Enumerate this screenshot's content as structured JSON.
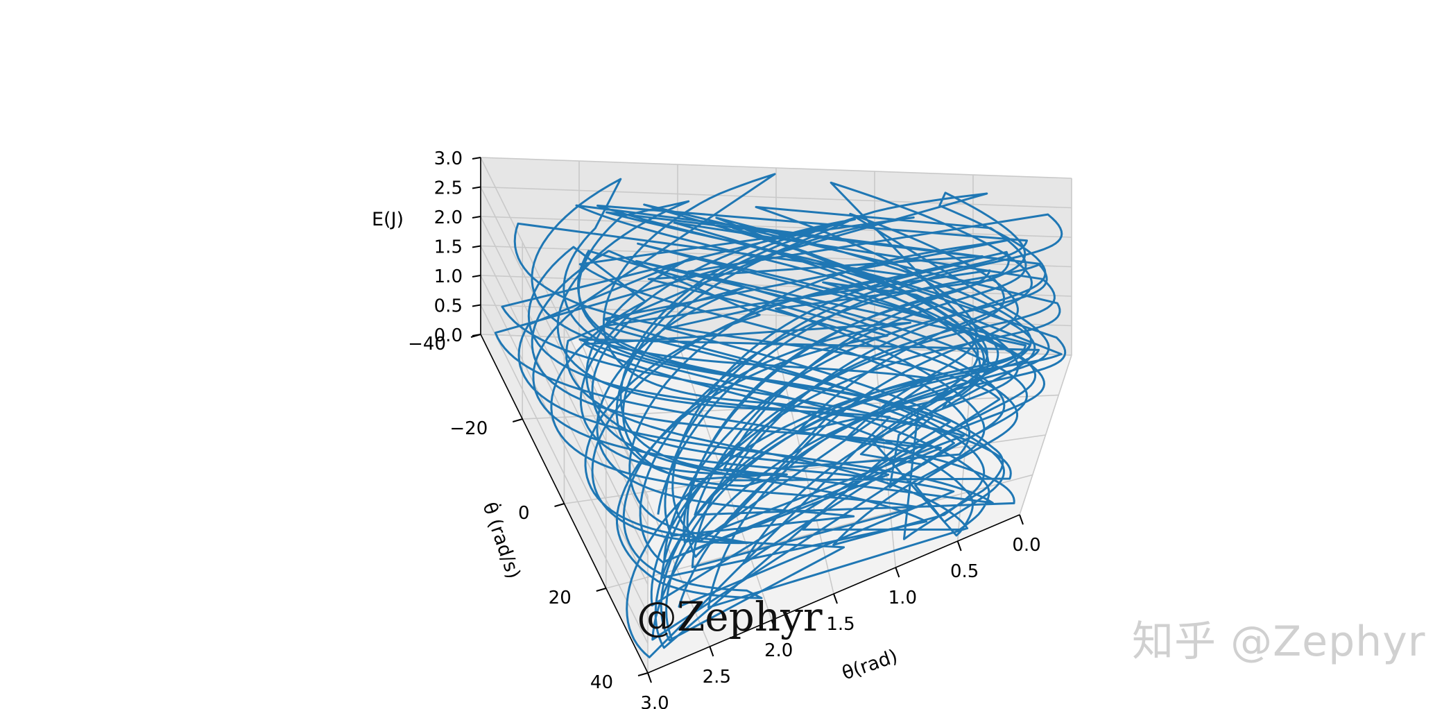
{
  "chart_data": {
    "type": "line3d",
    "series_color": "#1f77b4",
    "grid": true,
    "axes": {
      "x": {
        "label": "θ(rad)",
        "ticks": [
          "0.0",
          "0.5",
          "1.0",
          "1.5",
          "2.0",
          "2.5",
          "3.0"
        ],
        "range": [
          0,
          3
        ]
      },
      "y": {
        "label": "θ̇ (rad/s)",
        "ticks": [
          "−40",
          "−20",
          "0",
          "20",
          "40"
        ],
        "range": [
          -40,
          40
        ]
      },
      "z": {
        "label": "E(J)",
        "ticks": [
          "0.0",
          "0.5",
          "1.0",
          "1.5",
          "2.0",
          "2.5",
          "3.0"
        ],
        "range": [
          0,
          3
        ]
      }
    },
    "series": [
      {
        "kind": "trajectory",
        "x_range": [
          0,
          3
        ],
        "y_range": [
          -40,
          40
        ],
        "z_range": [
          0,
          3
        ]
      }
    ]
  },
  "watermarks": {
    "center": "@Zephyr",
    "corner": "知乎 @Zephyr"
  }
}
